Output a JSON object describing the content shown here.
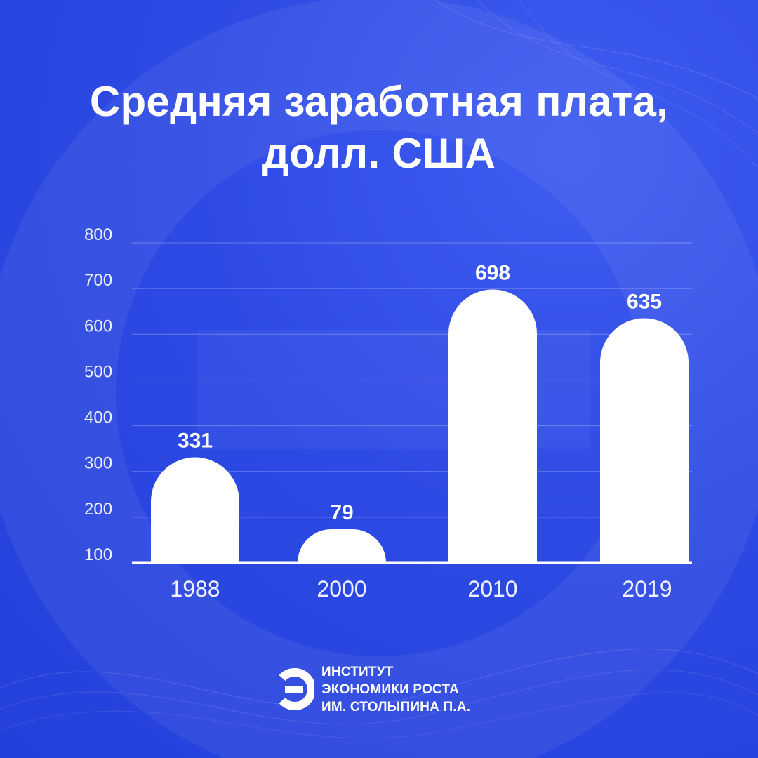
{
  "title_lines": [
    "Средняя заработная плата,",
    "долл. США"
  ],
  "chart_data": {
    "type": "bar",
    "title": "Средняя заработная плата, долл. США",
    "categories": [
      "1988",
      "2000",
      "2010",
      "2019"
    ],
    "values": [
      331,
      79,
      698,
      635
    ],
    "y_ticks": [
      100,
      200,
      300,
      400,
      500,
      600,
      700,
      800
    ],
    "ylim": [
      0,
      800
    ],
    "grid": true,
    "bar_color": "#ffffff",
    "axis_color": "#ffffff"
  },
  "brand": {
    "logo_icon": "institute-logo-icon",
    "lines": [
      "ИНСТИТУТ",
      "ЭКОНОМИКИ РОСТА",
      "ИМ. СТОЛЫПИНА П.А."
    ]
  },
  "colors": {
    "background": "#2f4fe6",
    "text": "#ffffff"
  }
}
